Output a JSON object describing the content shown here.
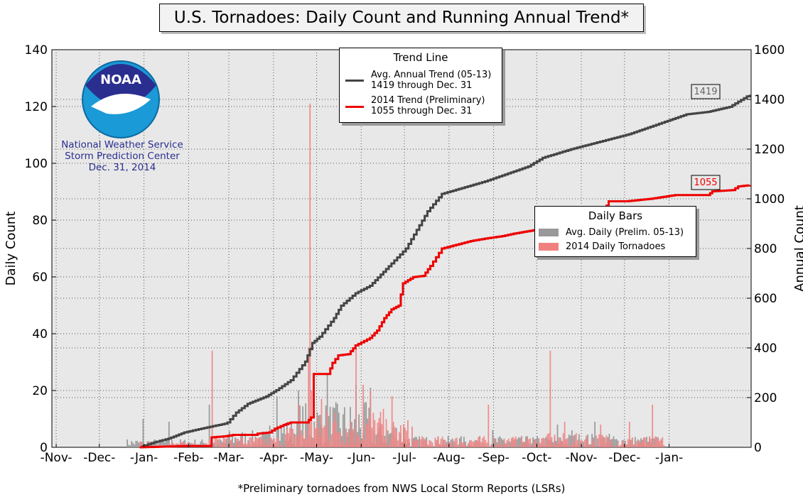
{
  "title": "U.S. Tornadoes: Daily Count and Running Annual Trend*",
  "footnote": "*Preliminary tornadoes from NWS Local Storm Reports (LSRs)",
  "noaa": {
    "logo_text": "NOAA",
    "line1": "National Weather Service",
    "line2": "Storm Prediction Center",
    "line3": "Dec. 31, 2014"
  },
  "trend_legend": {
    "title": "Trend Line",
    "items": [
      {
        "line1": "Avg. Annual Trend (05-13)",
        "line2": "1419 through Dec. 31",
        "color": "#444444"
      },
      {
        "line1": "2014 Trend (Preliminary)",
        "line2": "1055 through Dec. 31",
        "color": "#ee0000"
      }
    ]
  },
  "bars_legend": {
    "title": "Daily Bars",
    "items": [
      {
        "label": "Avg. Daily (Prelim. 05-13)",
        "color": "#999999"
      },
      {
        "label": "2014 Daily Tornadoes",
        "color": "#f08080"
      }
    ]
  },
  "end_labels": {
    "avg": "1419",
    "y2014": "1055"
  },
  "chart_data": {
    "type": "bar+line",
    "title": "U.S. Tornadoes: Daily Count and Running Annual Trend*",
    "xlabel": "",
    "ylabel": "Daily Count",
    "y2label": "Annual Count",
    "x_tick_labels": [
      "-Nov-",
      "-Dec-",
      "-Jan-",
      "-Feb-",
      "-Mar-",
      "-Apr-",
      "-May-",
      "-Jun-",
      "-Jul-",
      "-Aug-",
      "-Sep-",
      "-Oct-",
      "-Nov-",
      "-Dec-",
      "-Jan-"
    ],
    "ylim": [
      0,
      140
    ],
    "y_ticks": [
      0,
      20,
      40,
      60,
      80,
      100,
      120,
      140
    ],
    "y2lim": [
      0,
      1600
    ],
    "y2_ticks": [
      0,
      200,
      400,
      600,
      800,
      1000,
      1200,
      1400,
      1600
    ],
    "grid": true,
    "xlim_days": [
      -61,
      425
    ],
    "series": [
      {
        "name": "Avg. Annual Trend (05-13)",
        "axis": "right",
        "color": "#444444",
        "points": [
          [
            0,
            0
          ],
          [
            10,
            20
          ],
          [
            20,
            35
          ],
          [
            31,
            60
          ],
          [
            45,
            78
          ],
          [
            59,
            95
          ],
          [
            61,
            100
          ],
          [
            67,
            140
          ],
          [
            75,
            175
          ],
          [
            88,
            205
          ],
          [
            95,
            230
          ],
          [
            105,
            270
          ],
          [
            115,
            345
          ],
          [
            120,
            420
          ],
          [
            125,
            445
          ],
          [
            135,
            520
          ],
          [
            140,
            570
          ],
          [
            150,
            620
          ],
          [
            160,
            650
          ],
          [
            175,
            740
          ],
          [
            185,
            800
          ],
          [
            200,
            950
          ],
          [
            210,
            1020
          ],
          [
            222,
            1040
          ],
          [
            240,
            1070
          ],
          [
            260,
            1110
          ],
          [
            270,
            1130
          ],
          [
            280,
            1165
          ],
          [
            300,
            1200
          ],
          [
            320,
            1230
          ],
          [
            340,
            1260
          ],
          [
            355,
            1290
          ],
          [
            365,
            1310
          ],
          [
            380,
            1340
          ],
          [
            395,
            1350
          ],
          [
            410,
            1370
          ],
          [
            424,
            1419
          ]
        ]
      },
      {
        "name": "2014 Trend (Preliminary)",
        "axis": "right",
        "color": "#ee0000",
        "points": [
          [
            0,
            0
          ],
          [
            31,
            5
          ],
          [
            48,
            5
          ],
          [
            50,
            40
          ],
          [
            60,
            45
          ],
          [
            65,
            50
          ],
          [
            75,
            50
          ],
          [
            80,
            50
          ],
          [
            82,
            55
          ],
          [
            90,
            60
          ],
          [
            94,
            75
          ],
          [
            100,
            90
          ],
          [
            105,
            100
          ],
          [
            116,
            100
          ],
          [
            119,
            120
          ],
          [
            120,
            120
          ],
          [
            121,
            295
          ],
          [
            131,
            295
          ],
          [
            134,
            340
          ],
          [
            138,
            370
          ],
          [
            145,
            375
          ],
          [
            150,
            410
          ],
          [
            160,
            440
          ],
          [
            165,
            470
          ],
          [
            170,
            520
          ],
          [
            175,
            555
          ],
          [
            180,
            570
          ],
          [
            183,
            660
          ],
          [
            190,
            685
          ],
          [
            197,
            690
          ],
          [
            202,
            730
          ],
          [
            210,
            800
          ],
          [
            230,
            830
          ],
          [
            240,
            840
          ],
          [
            252,
            850
          ],
          [
            260,
            860
          ],
          [
            275,
            875
          ],
          [
            285,
            905
          ],
          [
            300,
            910
          ],
          [
            310,
            920
          ],
          [
            320,
            945
          ],
          [
            323,
            955
          ],
          [
            326,
            990
          ],
          [
            338,
            990
          ],
          [
            355,
            1000
          ],
          [
            372,
            1015
          ],
          [
            395,
            1015
          ],
          [
            398,
            1030
          ],
          [
            412,
            1035
          ],
          [
            416,
            1050
          ],
          [
            424,
            1055
          ]
        ]
      },
      {
        "name": "Avg. Daily (Prelim. 05-13)",
        "axis": "left",
        "color": "#999999",
        "values": "daily bars, typically 0-26 per day; peak ~26 in early May"
      },
      {
        "name": "2014 Daily Tornadoes",
        "axis": "left",
        "color": "#f08080",
        "values": "daily bars; peak ~121 on Apr 28; others ~35 (Feb 20, Apr 27, Jun 3, Oct 13), ~15 (Aug 31, Dec 23)"
      }
    ]
  }
}
